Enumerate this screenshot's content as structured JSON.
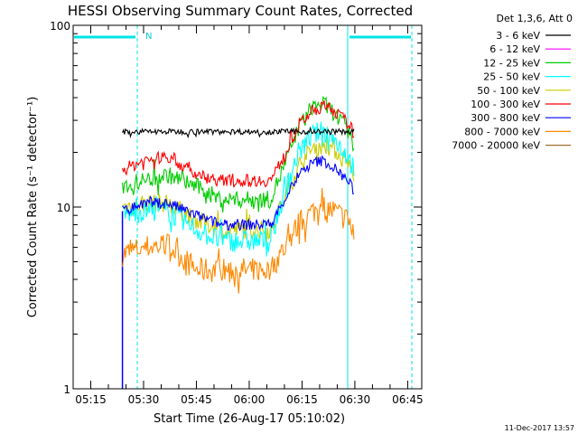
{
  "chart_data": {
    "type": "line",
    "title": "HESSI Observing Summary Count Rates, Corrected",
    "ylabel": "Corrected Count Rate (s⁻¹ detector⁻¹)",
    "xlabel": "Start Time (26-Aug-17 05:10:02)",
    "y_scale": "log",
    "ylim": [
      1,
      100
    ],
    "y_ticks": [
      "1",
      "10",
      "100"
    ],
    "xlim": [
      "05:10",
      "06:49"
    ],
    "x_ticks": [
      "05:15",
      "05:30",
      "05:45",
      "06:00",
      "06:15",
      "06:30",
      "06:45"
    ],
    "legend_title": "Det 1,3,6, Att 0",
    "legend_placement": "right",
    "footer": "11-Dec-2017 13:57",
    "night_label": "N",
    "series": [
      {
        "name": "3 - 6 keV",
        "color": "#000000",
        "x": [
          "05:24",
          "05:30",
          "05:40",
          "05:50",
          "06:00",
          "06:07",
          "06:12",
          "06:17",
          "06:22",
          "06:27",
          "06:30"
        ],
        "y": [
          26,
          26,
          26,
          26,
          26,
          26,
          26,
          26,
          26,
          26,
          26
        ]
      },
      {
        "name": "6 - 12 keV",
        "color": "#ff00ff",
        "x": [],
        "y": []
      },
      {
        "name": "12 - 25 keV",
        "color": "#00cc00",
        "x": [
          "05:24",
          "05:30",
          "05:37",
          "05:45",
          "05:52",
          "06:00",
          "06:06",
          "06:10",
          "06:14",
          "06:18",
          "06:21",
          "06:24",
          "06:28",
          "06:30"
        ],
        "y": [
          13,
          14,
          15,
          13,
          11,
          11,
          11,
          17,
          27,
          36,
          37,
          33,
          26,
          21
        ]
      },
      {
        "name": "25 - 50 keV",
        "color": "#00ffff",
        "x": [
          "05:24",
          "05:30",
          "05:37",
          "05:45",
          "05:52",
          "06:00",
          "06:06",
          "06:10",
          "06:14",
          "06:18",
          "06:21",
          "06:24",
          "06:28",
          "06:30"
        ],
        "y": [
          9,
          9.5,
          9.5,
          7.5,
          6.5,
          6.5,
          6.5,
          12,
          20,
          25,
          26,
          24,
          19,
          16
        ]
      },
      {
        "name": "50 - 100 keV",
        "color": "#cccc00",
        "x": [
          "05:24",
          "05:30",
          "05:37",
          "05:45",
          "05:52",
          "06:00",
          "06:06",
          "06:10",
          "06:14",
          "06:18",
          "06:21",
          "06:24",
          "06:28",
          "06:30"
        ],
        "y": [
          10,
          10.5,
          10.5,
          8.5,
          7.5,
          7.5,
          7.5,
          11,
          17,
          21,
          22,
          21,
          17,
          15
        ]
      },
      {
        "name": "100 - 300 keV",
        "color": "#ff0000",
        "x": [
          "05:24",
          "05:30",
          "05:37",
          "05:45",
          "05:52",
          "06:00",
          "06:06",
          "06:10",
          "06:14",
          "06:18",
          "06:21",
          "06:24",
          "06:28",
          "06:30"
        ],
        "y": [
          16,
          18,
          19,
          15,
          14,
          14,
          14,
          19,
          28,
          34,
          36,
          34,
          29,
          25
        ]
      },
      {
        "name": "300 - 800 keV",
        "color": "#0000ff",
        "x": [
          "05:24",
          "05:30",
          "05:37",
          "05:45",
          "05:52",
          "06:00",
          "06:06",
          "06:10",
          "06:14",
          "06:18",
          "06:21",
          "06:24",
          "06:28",
          "06:30"
        ],
        "y": [
          9.5,
          10.5,
          10.5,
          9,
          8,
          8,
          8,
          11,
          15,
          17.5,
          18,
          16.5,
          14,
          12
        ]
      },
      {
        "name": "800 - 7000 keV",
        "color": "#ff8800",
        "x": [
          "05:24",
          "05:30",
          "05:37",
          "05:45",
          "05:52",
          "06:00",
          "06:06",
          "06:10",
          "06:14",
          "06:18",
          "06:21",
          "06:24",
          "06:28",
          "06:30"
        ],
        "y": [
          5.5,
          6,
          6.2,
          4.5,
          4.5,
          4.5,
          4.5,
          6,
          8,
          9.5,
          10,
          9.5,
          8.5,
          7
        ]
      },
      {
        "name": "7000 - 20000 keV",
        "color": "#a07030",
        "x": [],
        "y": []
      }
    ]
  }
}
